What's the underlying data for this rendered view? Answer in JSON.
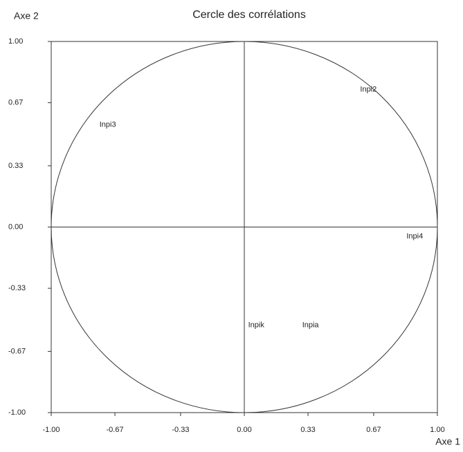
{
  "chart_data": {
    "type": "scatter",
    "title": "Cercle des corrélations",
    "x_label": "Axe 1",
    "y_label": "Axe 2",
    "point_labels": [
      "Inpi2",
      "Inpi3",
      "Inpi4",
      "Inpik",
      "Inpia"
    ],
    "x": [
      0.6,
      -0.75,
      0.84,
      0.02,
      0.3
    ],
    "values": [
      0.74,
      0.55,
      -0.05,
      -0.53,
      -0.53
    ],
    "xlim": [
      -1,
      1
    ],
    "ylim": [
      -1,
      1
    ],
    "xticks": [
      {
        "value": -1,
        "label": "-1.00"
      },
      {
        "value": -0.67,
        "label": "-0.67"
      },
      {
        "value": -0.33,
        "label": "-0.33"
      },
      {
        "value": 0,
        "label": "0.00"
      },
      {
        "value": 0.33,
        "label": "0.33"
      },
      {
        "value": 0.67,
        "label": "0.67"
      },
      {
        "value": 1,
        "label": "1.00"
      }
    ],
    "yticks": [
      {
        "value": -1,
        "label": "-1.00"
      },
      {
        "value": -0.67,
        "label": "-0.67"
      },
      {
        "value": -0.33,
        "label": "-0.33"
      },
      {
        "value": 0,
        "label": "0.00"
      },
      {
        "value": 0.33,
        "label": "0.33"
      },
      {
        "value": 0.67,
        "label": "0.67"
      },
      {
        "value": 1,
        "label": "1.00"
      }
    ]
  }
}
